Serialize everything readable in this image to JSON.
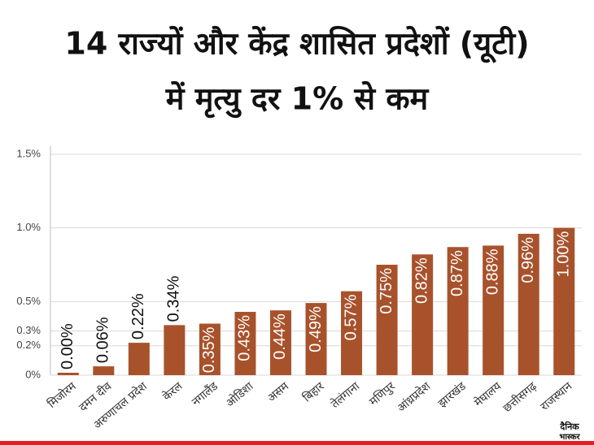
{
  "chart_data": {
    "type": "bar",
    "title": [
      "14 राज्यों और केंद्र शासित प्रदेशों (यूटी)",
      "में मृत्यु दर 1% से कम"
    ],
    "categories": [
      "मिजोरम",
      "दमन दीव",
      "अरुणाचल प्रदेश",
      "केरल",
      "नगालैंड",
      "ओडिशा",
      "असम",
      "बिहार",
      "तेलंगाना",
      "मणिपुर",
      "आंध्रप्रदेश",
      "झारखंड",
      "मेघालय",
      "छत्तीसगढ़",
      "राजस्थान"
    ],
    "values": [
      0.0,
      0.06,
      0.22,
      0.34,
      0.35,
      0.43,
      0.44,
      0.49,
      0.57,
      0.75,
      0.82,
      0.87,
      0.88,
      0.96,
      1.0
    ],
    "value_labels": [
      "0.00%",
      "0.06%",
      "0.22%",
      "0.34%",
      "0.35%",
      "0.43%",
      "0.44%",
      "0.49%",
      "0.57%",
      "0.75%",
      "0.82%",
      "0.87%",
      "0.88%",
      "0.96%",
      "1.00%"
    ],
    "color": "#a8522c",
    "ylim": [
      0,
      1.5
    ],
    "yticks": [
      {
        "value": 0,
        "label": "0%"
      },
      {
        "value": 0.2,
        "label": "0.2%"
      },
      {
        "value": 0.3,
        "label": "0.3%"
      },
      {
        "value": 0.5,
        "label": "0.5%"
      },
      {
        "value": 1.0,
        "label": "1.0%"
      },
      {
        "value": 1.5,
        "label": "1.5%"
      }
    ],
    "grid": true,
    "brand": [
      "दैनिक",
      "भास्कर"
    ]
  }
}
